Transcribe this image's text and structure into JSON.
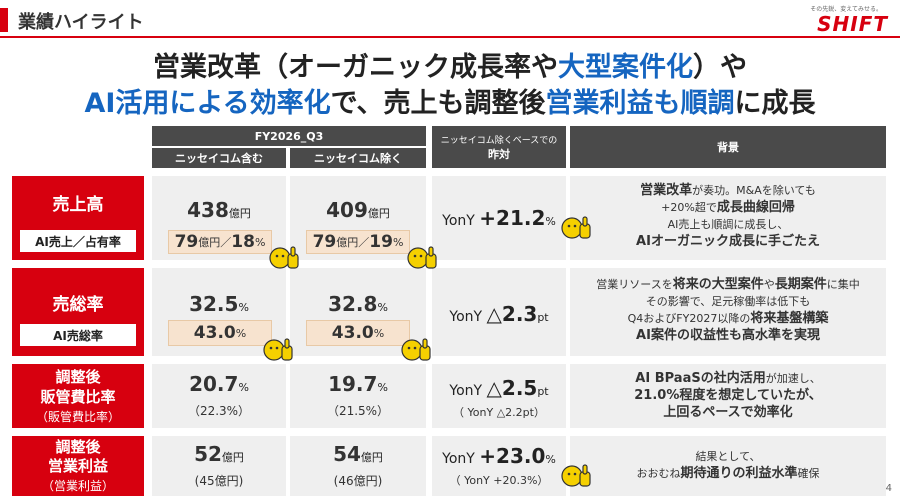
{
  "header": {
    "title": "業績ハイライト",
    "logo_tagline": "その先鋭、変えてみせる。",
    "logo_text": "SHIFT"
  },
  "headline": {
    "line1_a": "営業改革（オーガニック成長率や",
    "line1_b": "大型案件化",
    "line1_c": "）や",
    "line2_a": "AI活用による効率化",
    "line2_b": "で、売上も調整後",
    "line2_c": "営業利益も順調",
    "line2_d": "に成長"
  },
  "columns": {
    "period": "FY2026_Q3",
    "incl": "ニッセイコム含む",
    "excl": "ニッセイコム除く",
    "yoy_sub": "ニッセイコム除くベースでの",
    "yoy_main": "昨対",
    "background": "背景"
  },
  "rows": {
    "sales": {
      "label": "売上高",
      "pill": "AI売上／占有率",
      "incl_val": "438",
      "incl_unit": "億円",
      "incl_ai": "79",
      "incl_ai_unit": "億円／",
      "incl_share": "18",
      "incl_share_unit": "%",
      "excl_val": "409",
      "excl_unit": "億円",
      "excl_ai": "79",
      "excl_ai_unit": "億円／",
      "excl_share": "19",
      "excl_share_unit": "%",
      "yoy_prefix": "YonY",
      "yoy_val": "+21.2",
      "yoy_unit": "%",
      "bg1a": "営業改革",
      "bg1b": "が奏功。M&Aを除いても",
      "bg2a": "+20%超で",
      "bg2b": "成長曲線回帰",
      "bg3": "AI売上も順調に成長し、",
      "bg4": "AIオーガニック成長に手ごたえ"
    },
    "gross": {
      "label": "売総率",
      "pill": "AI売総率",
      "incl_val": "32.5",
      "incl_unit": "%",
      "incl_ai": "43.0",
      "incl_ai_unit": "%",
      "excl_val": "32.8",
      "excl_unit": "%",
      "excl_ai": "43.0",
      "excl_ai_unit": "%",
      "yoy_prefix": "YonY",
      "yoy_val": "△2.3",
      "yoy_unit": "pt",
      "bg1a": "営業リソースを",
      "bg1b": "将来の大型案件",
      "bg1c": "や",
      "bg1d": "長期案件",
      "bg1e": "に集中",
      "bg2": "その影響で、足元稼働率は低下も",
      "bg3a": "Q4およびFY2027以降の",
      "bg3b": "将来基盤構築",
      "bg4": "AI案件の収益性も高水準を実現"
    },
    "sga": {
      "label1": "調整後",
      "label2": "販管費比率",
      "label3": "（販管費比率）",
      "incl_val": "20.7",
      "incl_unit": "%",
      "incl_sub": "（22.3%）",
      "excl_val": "19.7",
      "excl_unit": "%",
      "excl_sub": "（21.5%）",
      "yoy_prefix": "YonY",
      "yoy_val": "△2.5",
      "yoy_unit": "pt",
      "yoy_sub": "（ YonY △2.2pt）",
      "bg1a": "AI BPaaSの社内活用",
      "bg1b": "が加速し、",
      "bg2": "21.0%程度を想定していたが、",
      "bg3": "上回るペースで効率化"
    },
    "op": {
      "label1": "調整後",
      "label2": "営業利益",
      "label3": "（営業利益）",
      "incl_val": "52",
      "incl_unit": "億円",
      "incl_sub": "(45億円)",
      "excl_val": "54",
      "excl_unit": "億円",
      "excl_sub": "(46億円)",
      "yoy_prefix": "YonY",
      "yoy_val": "+23.0",
      "yoy_unit": "%",
      "yoy_sub": "（ YonY +20.3%）",
      "bg1": "結果として、",
      "bg2a": "おおむね",
      "bg2b": "期待通りの利益水準",
      "bg2c": "確保"
    }
  },
  "page_number": "4",
  "colors": {
    "accent": "#d7000f",
    "blue": "#1565c0",
    "header_gray": "#4a4a4a",
    "cell_gray": "#efefef",
    "peach": "#f7e3cf"
  }
}
